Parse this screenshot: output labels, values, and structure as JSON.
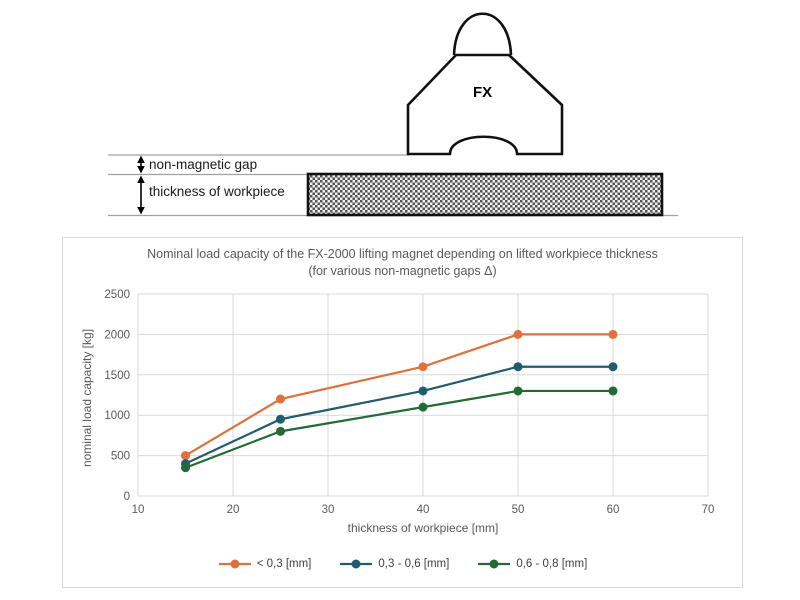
{
  "diagram": {
    "magnet_label": "FX",
    "gap_label": "non-magnetic gap",
    "thickness_label": "thickness of workpiece"
  },
  "chart_data": {
    "type": "line",
    "title": "Nominal load capacity of the FX-2000 lifting magnet depending on lifted workpiece thickness",
    "subtitle": "(for various non-magnetic gaps Δ)",
    "xlabel": "thickness of workpiece [mm]",
    "ylabel": "nominal load capacity [kg]",
    "x": [
      15,
      25,
      40,
      50,
      60
    ],
    "series": [
      {
        "name": "< 0,3 [mm]",
        "color": "#E1713C",
        "values": [
          500,
          1200,
          1600,
          2000,
          2000
        ]
      },
      {
        "name": "0,3 - 0,6 [mm]",
        "color": "#205D73",
        "values": [
          400,
          950,
          1300,
          1600,
          1600
        ]
      },
      {
        "name": "0,6 - 0,8 [mm]",
        "color": "#226B35",
        "values": [
          350,
          800,
          1100,
          1300,
          1300
        ]
      }
    ],
    "xlim": [
      10,
      70
    ],
    "ylim": [
      0,
      2500
    ],
    "xticks": [
      10,
      20,
      30,
      40,
      50,
      60,
      70
    ],
    "yticks": [
      0,
      500,
      1000,
      1500,
      2000,
      2500
    ],
    "grid": true,
    "legend_position": "bottom",
    "gridline_color": "#D9D9D9",
    "text_color": "#595959"
  }
}
